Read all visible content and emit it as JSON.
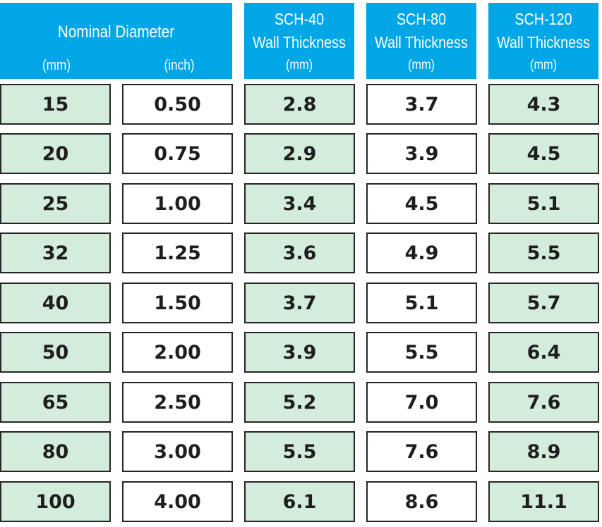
{
  "header": {
    "nominal_diameter": {
      "title": "Nominal Diameter",
      "unit_mm": "(mm)",
      "unit_inch": "(inch)"
    },
    "sch40": {
      "line1": "SCH-40",
      "line2": "Wall Thickness",
      "line3": "(mm)"
    },
    "sch80": {
      "line1": "SCH-80",
      "line2": "Wall Thickness",
      "line3": "(mm)"
    },
    "sch120": {
      "line1": "SCH-120",
      "line2": "Wall Thickness",
      "line3": "(mm)"
    }
  },
  "rows": [
    {
      "mm": "15",
      "inch": "0.50",
      "sch40": "2.8",
      "sch80": "3.7",
      "sch120": "4.3"
    },
    {
      "mm": "20",
      "inch": "0.75",
      "sch40": "2.9",
      "sch80": "3.9",
      "sch120": "4.5"
    },
    {
      "mm": "25",
      "inch": "1.00",
      "sch40": "3.4",
      "sch80": "4.5",
      "sch120": "5.1"
    },
    {
      "mm": "32",
      "inch": "1.25",
      "sch40": "3.6",
      "sch80": "4.9",
      "sch120": "5.5"
    },
    {
      "mm": "40",
      "inch": "1.50",
      "sch40": "3.7",
      "sch80": "5.1",
      "sch120": "5.7"
    },
    {
      "mm": "50",
      "inch": "2.00",
      "sch40": "3.9",
      "sch80": "5.5",
      "sch120": "6.4"
    },
    {
      "mm": "65",
      "inch": "2.50",
      "sch40": "5.2",
      "sch80": "7.0",
      "sch120": "7.6"
    },
    {
      "mm": "80",
      "inch": "3.00",
      "sch40": "5.5",
      "sch80": "7.6",
      "sch120": "8.9"
    },
    {
      "mm": "100",
      "inch": "4.00",
      "sch40": "6.1",
      "sch80": "8.6",
      "sch120": "11.1"
    }
  ],
  "colors": {
    "header_bg": "#00a6e6",
    "header_text": "#ffffff",
    "green_cell": "#d4ecdc",
    "white_cell": "#ffffff",
    "border": "#262626"
  }
}
